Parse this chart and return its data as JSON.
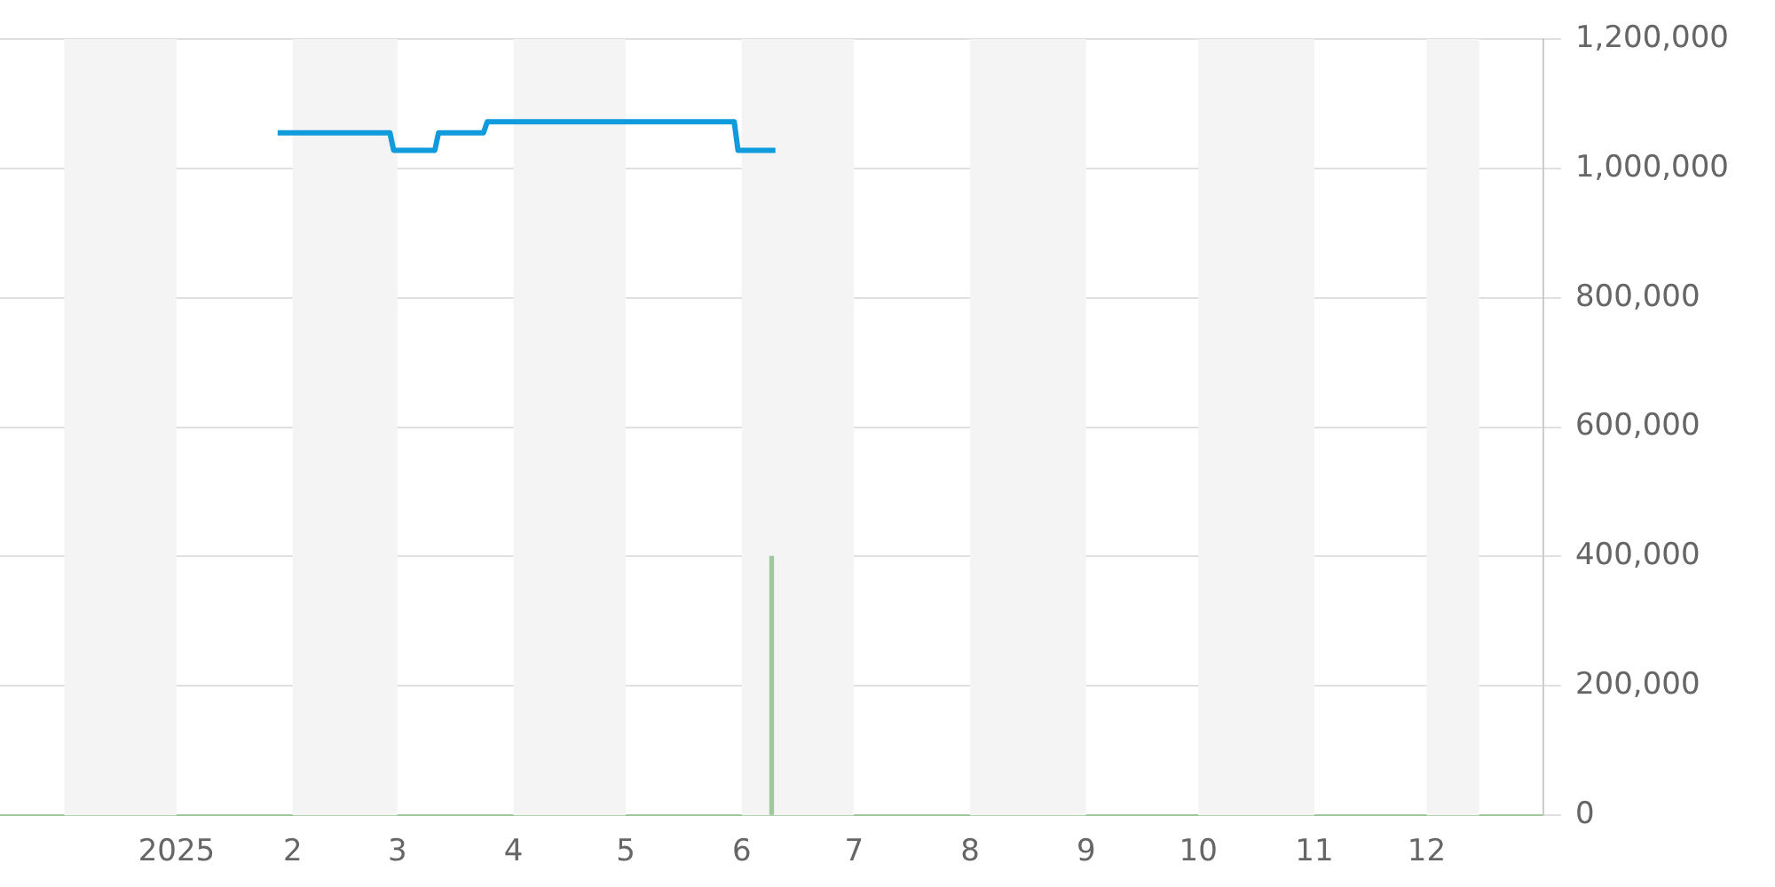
{
  "chart_data": {
    "type": "line",
    "grid": "y",
    "legend": false,
    "marker": "none",
    "line_style": "solid",
    "xlim": [
      "2024-12-02",
      "2025-12-15"
    ],
    "xticks": [
      {
        "value": "2025-01-01",
        "label": "2025"
      },
      {
        "value": "2025-02-01",
        "label": "2"
      },
      {
        "value": "2025-03-01",
        "label": "3"
      },
      {
        "value": "2025-04-01",
        "label": "4"
      },
      {
        "value": "2025-05-01",
        "label": "5"
      },
      {
        "value": "2025-06-01",
        "label": "6"
      },
      {
        "value": "2025-07-01",
        "label": "7"
      },
      {
        "value": "2025-08-01",
        "label": "8"
      },
      {
        "value": "2025-09-01",
        "label": "9"
      },
      {
        "value": "2025-10-01",
        "label": "10"
      },
      {
        "value": "2025-11-01",
        "label": "11"
      },
      {
        "value": "2025-12-01",
        "label": "12"
      }
    ],
    "ylim": [
      0,
      1200000
    ],
    "yticks": [
      {
        "value": 0,
        "label": "0"
      },
      {
        "value": 200000,
        "label": "200,000"
      },
      {
        "value": 400000,
        "label": "400,000"
      },
      {
        "value": 600000,
        "label": "600,000"
      },
      {
        "value": 800000,
        "label": "800,000"
      },
      {
        "value": 1000000,
        "label": "1,000,000"
      },
      {
        "value": 1200000,
        "label": "1,200,000"
      }
    ],
    "bands": [
      {
        "axis": "x",
        "from": "2024-12-02",
        "to": "2025-01-01",
        "color": "#f4f4f4"
      },
      {
        "axis": "x",
        "from": "2025-02-01",
        "to": "2025-03-01",
        "color": "#f4f4f4"
      },
      {
        "axis": "x",
        "from": "2025-04-01",
        "to": "2025-05-01",
        "color": "#f4f4f4"
      },
      {
        "axis": "x",
        "from": "2025-06-01",
        "to": "2025-07-01",
        "color": "#f4f4f4"
      },
      {
        "axis": "x",
        "from": "2025-08-01",
        "to": "2025-09-01",
        "color": "#f4f4f4"
      },
      {
        "axis": "x",
        "from": "2025-10-01",
        "to": "2025-11-01",
        "color": "#f4f4f4"
      },
      {
        "axis": "x",
        "from": "2025-12-01",
        "to": "2025-12-15",
        "color": "#f4f4f4"
      }
    ],
    "series": [
      {
        "color": "#109cdc",
        "x": [
          "2025-01-28",
          "2025-02-27",
          "2025-02-28",
          "2025-03-11",
          "2025-03-12",
          "2025-03-24",
          "2025-03-25",
          "2025-05-30",
          "2025-05-31",
          "2025-06-10"
        ],
        "values": [
          1055000,
          1055000,
          1028000,
          1028000,
          1055000,
          1055000,
          1072000,
          1072000,
          1028000,
          1028000
        ]
      },
      {
        "type": "bar",
        "color": "#9cc89c",
        "x": [
          "2025-06-09"
        ],
        "values": [
          400000
        ]
      }
    ]
  }
}
